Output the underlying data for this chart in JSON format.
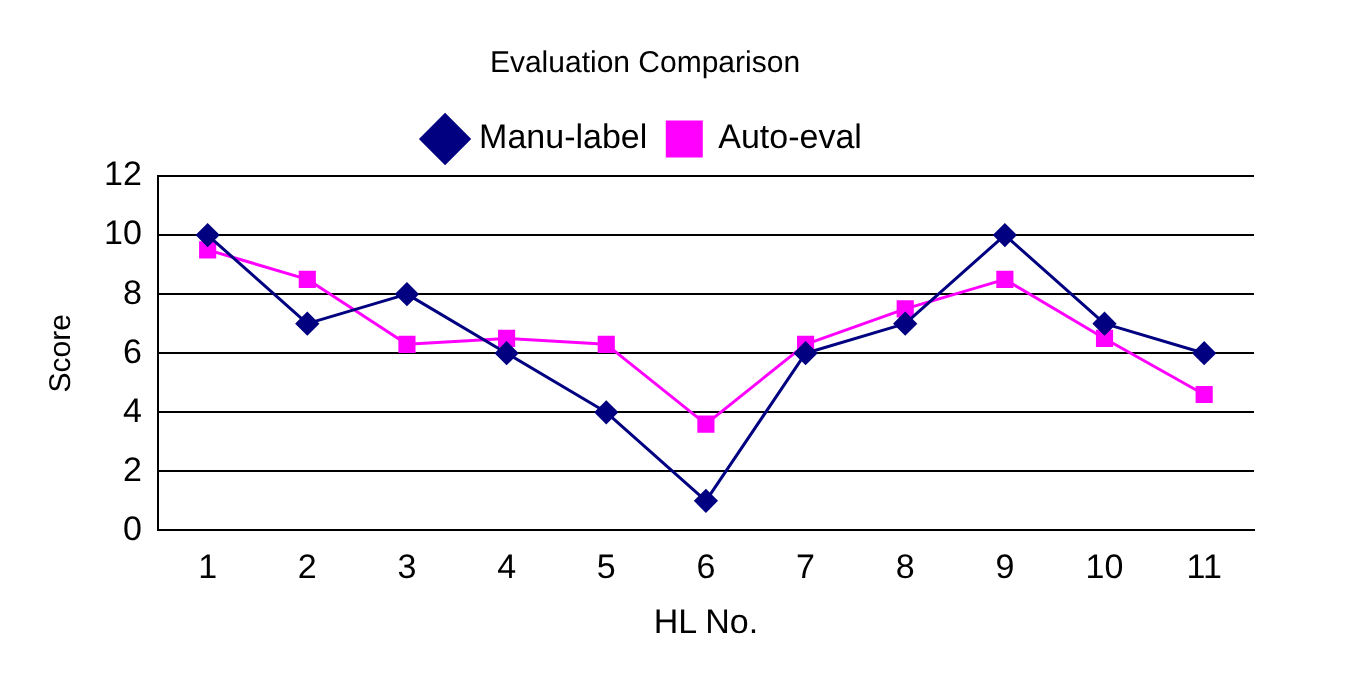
{
  "chart_data": {
    "type": "line",
    "title": "Evaluation Comparison",
    "xlabel": "HL No.",
    "ylabel": "Score",
    "categories": [
      "1",
      "2",
      "3",
      "4",
      "5",
      "6",
      "7",
      "8",
      "9",
      "10",
      "11"
    ],
    "series": [
      {
        "name": "Manu-label",
        "color": "#000080",
        "marker": "diamond",
        "values": [
          10,
          7,
          8,
          6,
          4,
          1,
          6,
          7,
          10,
          7,
          6
        ]
      },
      {
        "name": "Auto-eval",
        "color": "#ff00ff",
        "marker": "square",
        "values": [
          9.5,
          8.5,
          6.3,
          6.5,
          6.3,
          3.6,
          6.3,
          7.5,
          8.5,
          6.5,
          4.6
        ]
      }
    ],
    "ylim": [
      0,
      12
    ],
    "yticks": [
      0,
      2,
      4,
      6,
      8,
      10,
      12
    ],
    "grid": "y",
    "legend": "top"
  }
}
